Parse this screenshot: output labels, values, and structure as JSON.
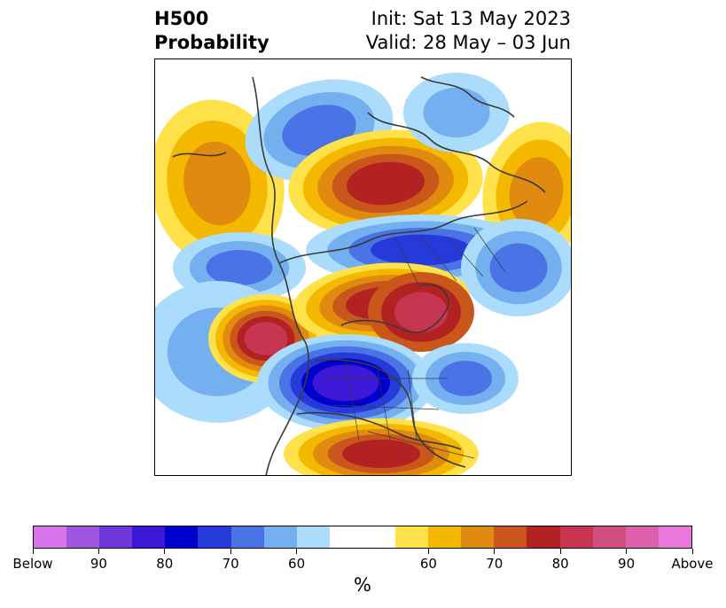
{
  "header": {
    "title_line1": "H500",
    "title_line2": "Probability",
    "init_line": "Init: Sat 13 May 2023",
    "valid_line": "Valid: 28 May – 03 Jun"
  },
  "colorbar": {
    "below_colors": [
      "#d675e9",
      "#9e55e0",
      "#6f36d9",
      "#3b19d6",
      "#0000cc",
      "#2639d9",
      "#4a73e6",
      "#74aff0",
      "#acdcfb"
    ],
    "neutral_color": "#ffffff",
    "above_colors": [
      "#ffe24a",
      "#f5b800",
      "#e08a10",
      "#c9561a",
      "#b22222",
      "#c73550",
      "#cf4f80",
      "#dc60ac",
      "#e878dc"
    ],
    "tick_labels": [
      "Below",
      "90",
      "80",
      "70",
      "60",
      "60",
      "70",
      "80",
      "90",
      "Above"
    ],
    "unit_label": "%"
  },
  "map": {
    "projection": "north-polar-stereographic",
    "colors": {
      "above_60": "#ffe24a",
      "above_65": "#f5b800",
      "above_70": "#e08a10",
      "above_75": "#c9561a",
      "above_80": "#b22222",
      "above_85": "#c73550",
      "below_60": "#acdcfb",
      "below_65": "#74aff0",
      "below_70": "#4a73e6",
      "below_75": "#2639d9",
      "below_80": "#0000cc",
      "below_85": "#3b19d6",
      "coastline": "#3a3a3a"
    }
  }
}
